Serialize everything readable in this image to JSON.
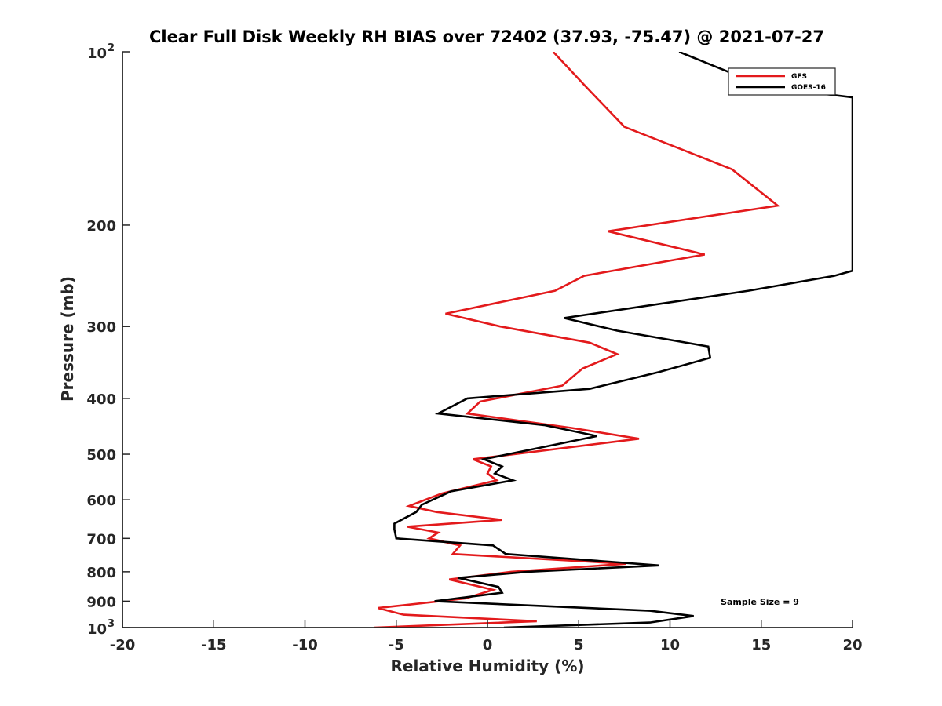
{
  "chart_data": {
    "type": "line",
    "title": "Clear Full Disk Weekly RH BIAS over 72402 (37.93, -75.47) @ 2021-07-27",
    "xlabel": "Relative Humidity (%)",
    "ylabel": "Pressure (mb)",
    "xlim": [
      -20,
      20
    ],
    "ylim": [
      100,
      1000
    ],
    "yscale": "log",
    "yreversed": true,
    "grid": false,
    "legend_position": "top-right",
    "x_ticks": [
      -20,
      -15,
      -10,
      -5,
      0,
      5,
      10,
      15,
      20
    ],
    "x_tick_labels": [
      "-20",
      "-15",
      "-10",
      "-5",
      "0",
      "5",
      "10",
      "15",
      "20"
    ],
    "y_ticks": [
      200,
      300,
      400,
      500,
      600,
      700,
      800,
      900
    ],
    "y_tick_labels": [
      "200",
      "300",
      "400",
      "500",
      "600",
      "700",
      "800",
      "900"
    ],
    "y_power_ticks": [
      {
        "value": 100,
        "base": "10",
        "exp": "2"
      },
      {
        "value": 1000,
        "base": "10",
        "exp": "3"
      }
    ],
    "series": [
      {
        "name": "GFS",
        "color": "#e31a1c",
        "points": [
          [
            3.6,
            100
          ],
          [
            5.4,
            115
          ],
          [
            7.5,
            135
          ],
          [
            13.4,
            160
          ],
          [
            15.9,
            185
          ],
          [
            6.6,
            205
          ],
          [
            11.9,
            225
          ],
          [
            5.3,
            245
          ],
          [
            3.7,
            260
          ],
          [
            -2.3,
            285
          ],
          [
            0.7,
            300
          ],
          [
            5.6,
            320
          ],
          [
            7.1,
            335
          ],
          [
            5.2,
            355
          ],
          [
            4.1,
            380
          ],
          [
            -0.4,
            405
          ],
          [
            -1.1,
            425
          ],
          [
            4.6,
            450
          ],
          [
            8.3,
            470
          ],
          [
            -0.8,
            510
          ],
          [
            0.2,
            525
          ],
          [
            0.0,
            540
          ],
          [
            0.5,
            555
          ],
          [
            -2.5,
            585
          ],
          [
            -4.3,
            615
          ],
          [
            -2.8,
            630
          ],
          [
            0.8,
            650
          ],
          [
            -4.4,
            668
          ],
          [
            -2.7,
            684
          ],
          [
            -3.2,
            700
          ],
          [
            -1.5,
            720
          ],
          [
            -1.9,
            745
          ],
          [
            7.6,
            775
          ],
          [
            1.3,
            800
          ],
          [
            -2.1,
            825
          ],
          [
            0.3,
            860
          ],
          [
            -1.2,
            890
          ],
          [
            -6.0,
            925
          ],
          [
            -4.6,
            950
          ],
          [
            2.7,
            975
          ],
          [
            -6.2,
            1000
          ]
        ]
      },
      {
        "name": "GOES-16",
        "color": "#000000",
        "points": [
          [
            10.5,
            100
          ],
          [
            15.2,
            115
          ],
          [
            20.0,
            120
          ],
          [
            20.0,
            240
          ],
          [
            19.0,
            245
          ],
          [
            14.3,
            260
          ],
          [
            4.2,
            290
          ],
          [
            7.1,
            305
          ],
          [
            12.1,
            325
          ],
          [
            12.2,
            340
          ],
          [
            9.4,
            360
          ],
          [
            5.6,
            385
          ],
          [
            -1.1,
            400
          ],
          [
            -2.7,
            425
          ],
          [
            3.1,
            445
          ],
          [
            6.0,
            465
          ],
          [
            -0.2,
            510
          ],
          [
            0.8,
            525
          ],
          [
            0.4,
            540
          ],
          [
            1.4,
            555
          ],
          [
            -2.0,
            580
          ],
          [
            -3.6,
            612
          ],
          [
            -3.9,
            630
          ],
          [
            -5.1,
            660
          ],
          [
            -5.1,
            675
          ],
          [
            -5.0,
            700
          ],
          [
            0.3,
            720
          ],
          [
            1.0,
            745
          ],
          [
            9.4,
            780
          ],
          [
            2.2,
            800
          ],
          [
            -1.6,
            820
          ],
          [
            0.6,
            850
          ],
          [
            0.8,
            870
          ],
          [
            -2.9,
            900
          ],
          [
            8.9,
            935
          ],
          [
            11.3,
            955
          ],
          [
            8.9,
            980
          ],
          [
            0.9,
            1000
          ]
        ]
      }
    ],
    "annotation": "Sample Size = 9"
  }
}
